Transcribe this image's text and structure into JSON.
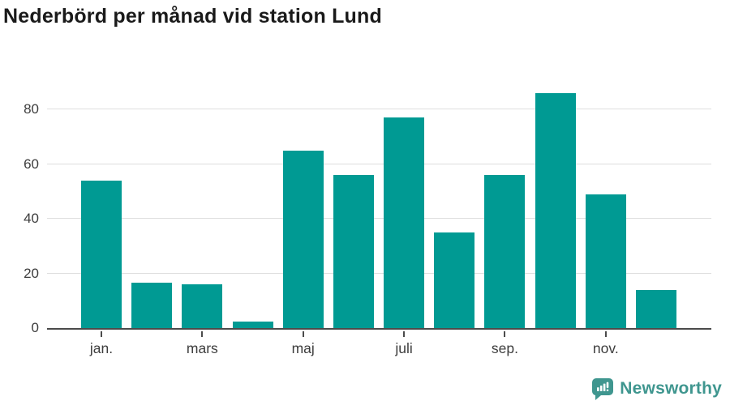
{
  "title": "Nederbörd per månad vid station Lund",
  "branding": {
    "logo_text": "Newsworthy"
  },
  "colors": {
    "bar": "#009a93",
    "logo": "#3f968f",
    "title_text": "#1a1a1a",
    "axis_text": "#3d3d3d",
    "axis_line": "#4b4b4b",
    "gridline": "#dedede"
  },
  "chart_data": {
    "type": "bar",
    "title": "Nederbörd per månad vid station Lund",
    "xlabel": "",
    "ylabel": "",
    "categories": [
      "jan.",
      "",
      "mars",
      "",
      "maj",
      "",
      "juli",
      "",
      "sep.",
      "",
      "nov.",
      ""
    ],
    "values": [
      54,
      16.5,
      16,
      2.3,
      65,
      56,
      77,
      35,
      56,
      86,
      49,
      14
    ],
    "y_ticks": [
      0,
      20,
      40,
      60,
      80
    ],
    "ylim": [
      0,
      91
    ],
    "grid": true,
    "legend": "none",
    "bar_color": "#009a93"
  }
}
